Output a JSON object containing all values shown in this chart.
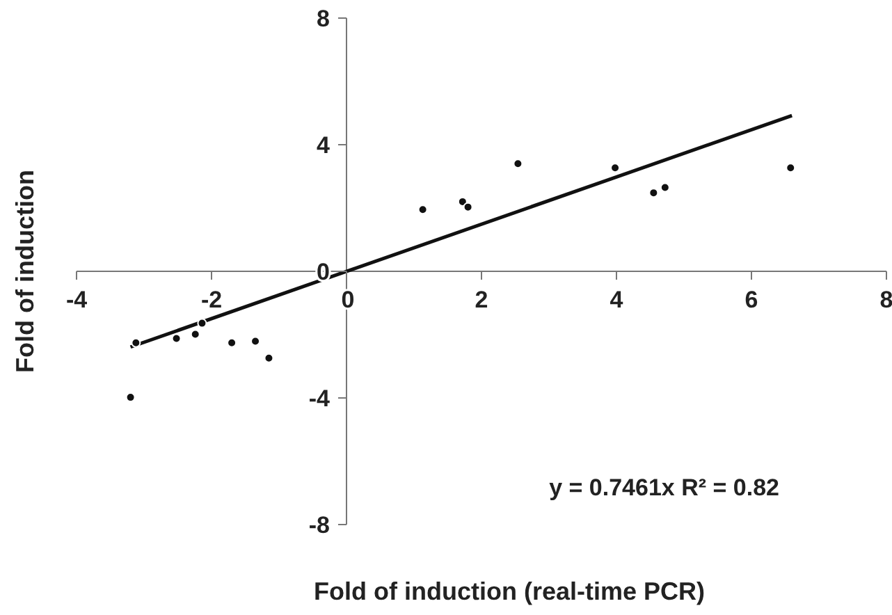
{
  "chart_data": {
    "type": "scatter",
    "xlabel": "Fold of induction (real-time PCR)",
    "ylabel": "Fold of induction",
    "annotations": [
      "y = 0.7461x R² = 0.82"
    ],
    "xlim": [
      -4,
      8
    ],
    "ylim": [
      -8,
      8
    ],
    "xticks": [
      -4,
      -2,
      0,
      2,
      4,
      6,
      8
    ],
    "yticks": [
      -8,
      -4,
      0,
      4,
      8
    ],
    "grid": false,
    "series": [
      {
        "color": "#111111",
        "marker": "circle",
        "x": [
          -3.2,
          -3.12,
          -2.52,
          -2.24,
          -2.14,
          -1.7,
          -1.35,
          -1.15,
          1.13,
          1.72,
          1.8,
          2.54,
          3.98,
          4.55,
          4.72,
          6.58
        ],
        "values": [
          -3.98,
          -2.26,
          -2.12,
          -1.99,
          -1.64,
          -2.26,
          -2.21,
          -2.74,
          1.95,
          2.2,
          2.03,
          3.4,
          3.27,
          2.48,
          2.65,
          3.27
        ]
      },
      {
        "type": "line",
        "color": "#111111",
        "line_style": "solid",
        "marker": "none",
        "x": [
          -3.2,
          6.6
        ],
        "values": [
          -2.39,
          4.92
        ]
      }
    ]
  }
}
